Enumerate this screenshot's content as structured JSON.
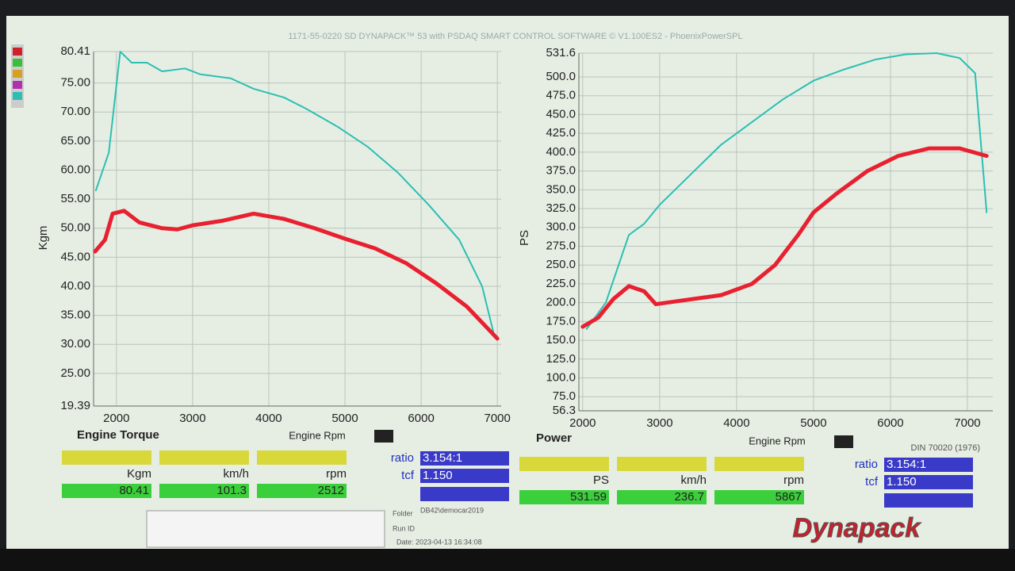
{
  "header": {
    "title": "1171-55-0220 SD DYNAPACK™ 53 with PSDAQ SMART CONTROL SOFTWARE © V1.100ES2 - PhoenixPowerSPL"
  },
  "chart_data": [
    {
      "type": "line",
      "title": "Engine Torque",
      "x_label": "Engine Rpm",
      "y_label": "Kgm",
      "grid": true,
      "xlim": [
        1700,
        7050
      ],
      "xticks": [
        2000,
        3000,
        4000,
        5000,
        6000,
        7000
      ],
      "ylim": [
        19.39,
        80.41
      ],
      "yticks": [
        {
          "value": 19.39,
          "label": "19.39"
        },
        {
          "value": 25,
          "label": "25.00"
        },
        {
          "value": 30,
          "label": "30.00"
        },
        {
          "value": 35,
          "label": "35.00"
        },
        {
          "value": 40,
          "label": "40.00"
        },
        {
          "value": 45,
          "label": "45.00"
        },
        {
          "value": 50,
          "label": "50.00"
        },
        {
          "value": 55,
          "label": "55.00"
        },
        {
          "value": 60,
          "label": "60.00"
        },
        {
          "value": 65,
          "label": "65.00"
        },
        {
          "value": 70,
          "label": "70.00"
        },
        {
          "value": 75,
          "label": "75.00"
        },
        {
          "value": 80.41,
          "label": "80.41"
        }
      ],
      "series": [
        {
          "color": "#2bbfb3",
          "x": [
            1730,
            1900,
            2050,
            2200,
            2400,
            2600,
            2900,
            3100,
            3500,
            3800,
            4200,
            4500,
            4900,
            5300,
            5700,
            6100,
            6500,
            6800,
            6950
          ],
          "values": [
            56.5,
            63,
            80.4,
            78.5,
            78.5,
            77,
            77.5,
            76.5,
            75.8,
            74,
            72.5,
            70.5,
            67.5,
            64,
            59.5,
            54,
            48,
            40,
            32
          ]
        },
        {
          "color": "#e8202f",
          "x": [
            1720,
            1850,
            1950,
            2100,
            2300,
            2600,
            2800,
            3000,
            3400,
            3800,
            4200,
            4600,
            5000,
            5400,
            5800,
            6200,
            6600,
            7000
          ],
          "values": [
            46,
            48,
            52.5,
            53,
            51,
            50,
            49.8,
            50.5,
            51.3,
            52.5,
            51.6,
            50,
            48.2,
            46.5,
            44,
            40.5,
            36.5,
            31
          ]
        }
      ]
    },
    {
      "type": "line",
      "title": "Power",
      "x_label": "Engine Rpm",
      "y_label": "PS",
      "grid": true,
      "xlim": [
        1950,
        7330
      ],
      "xticks": [
        2000,
        3000,
        4000,
        5000,
        6000,
        7000
      ],
      "ylim": [
        56.3,
        531.6
      ],
      "yticks": [
        {
          "value": 56.3,
          "label": "56.3"
        },
        {
          "value": 75,
          "label": "75.0"
        },
        {
          "value": 100,
          "label": "100.0"
        },
        {
          "value": 125,
          "label": "125.0"
        },
        {
          "value": 150,
          "label": "150.0"
        },
        {
          "value": 175,
          "label": "175.0"
        },
        {
          "value": 200,
          "label": "200.0"
        },
        {
          "value": 225,
          "label": "225.0"
        },
        {
          "value": 250,
          "label": "250.0"
        },
        {
          "value": 275,
          "label": "275.0"
        },
        {
          "value": 300,
          "label": "300.0"
        },
        {
          "value": 325,
          "label": "325.0"
        },
        {
          "value": 350,
          "label": "350.0"
        },
        {
          "value": 375,
          "label": "375.0"
        },
        {
          "value": 400,
          "label": "400.0"
        },
        {
          "value": 425,
          "label": "425.0"
        },
        {
          "value": 450,
          "label": "450.0"
        },
        {
          "value": 475,
          "label": "475.0"
        },
        {
          "value": 500,
          "label": "500.0"
        },
        {
          "value": 531.6,
          "label": "531.6"
        }
      ],
      "series": [
        {
          "color": "#2bbfb3",
          "x": [
            2050,
            2300,
            2500,
            2600,
            2800,
            3000,
            3400,
            3800,
            4200,
            4600,
            5000,
            5400,
            5800,
            6200,
            6600,
            6900,
            7100,
            7250
          ],
          "values": [
            165,
            200,
            260,
            290,
            305,
            330,
            370,
            410,
            440,
            470,
            495,
            510,
            523,
            530,
            531.6,
            525,
            505,
            320
          ]
        },
        {
          "color": "#e8202f",
          "x": [
            2000,
            2200,
            2400,
            2600,
            2800,
            2950,
            3300,
            3800,
            4200,
            4500,
            4800,
            5000,
            5300,
            5700,
            6100,
            6500,
            6900,
            7250
          ],
          "values": [
            168,
            180,
            205,
            222,
            215,
            198,
            203,
            210,
            225,
            250,
            290,
            320,
            345,
            375,
            395,
            405,
            405,
            395
          ]
        }
      ]
    }
  ],
  "panels": [
    {
      "labels": [
        "Kgm",
        "km/h",
        "rpm"
      ],
      "readings": [
        "80.41",
        "101.3",
        "2512"
      ],
      "ratio_label": "ratio",
      "ratio": "3.154:1",
      "tcf_label": "tcf",
      "tcf": "1.150"
    },
    {
      "labels": [
        "PS",
        "km/h",
        "rpm"
      ],
      "readings": [
        "531.59",
        "236.7",
        "5867"
      ],
      "ratio_label": "ratio",
      "ratio": "3.154:1",
      "tcf_label": "tcf",
      "tcf": "1.150",
      "standard": "DIN 70020 (1976)"
    }
  ],
  "info": {
    "folder_label": "Folder",
    "folder": "DB42\\democar2019",
    "run_label": "Run ID",
    "date": "Date: 2023-04-13 16:34:08"
  },
  "logo": "Dynapack"
}
